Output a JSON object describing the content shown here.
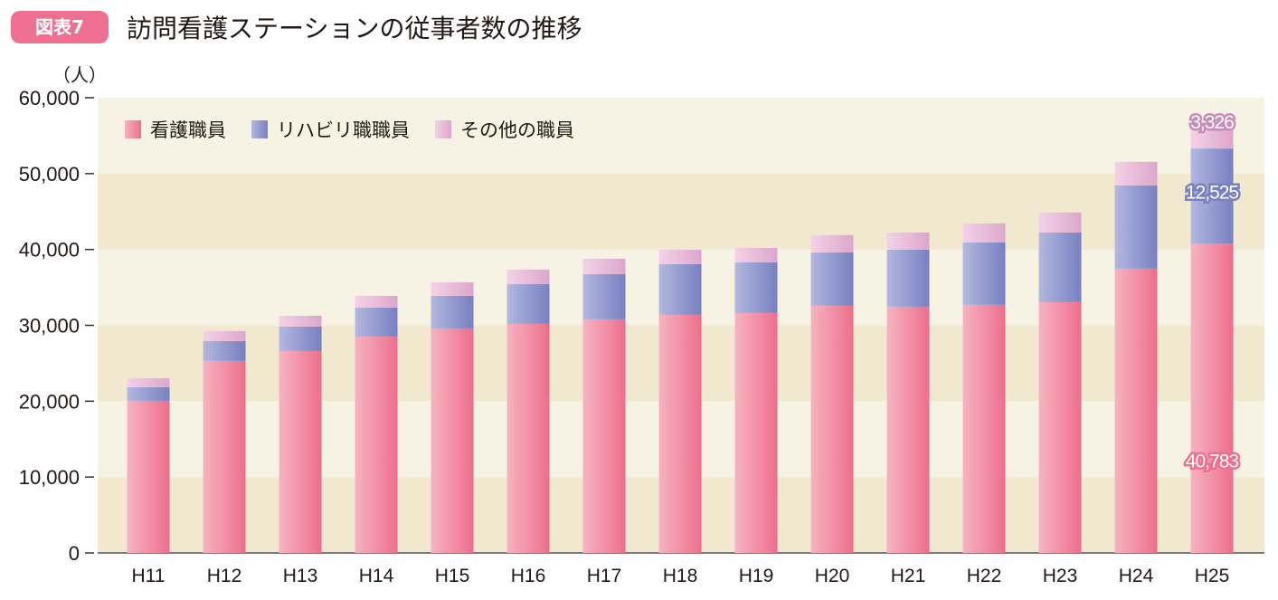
{
  "badge": "図表7",
  "title": "訪問看護ステーションの従事者数の推移",
  "chart_data": {
    "type": "bar",
    "stacked": true,
    "title": "訪問看護ステーションの従事者数の推移",
    "ylabel": "（人）",
    "xlabel": "",
    "ylim": [
      0,
      60000
    ],
    "yticks": [
      0,
      10000,
      20000,
      30000,
      40000,
      50000,
      60000
    ],
    "ytick_labels": [
      "0",
      "10,000",
      "20,000",
      "30,000",
      "40,000",
      "50,000",
      "60,000"
    ],
    "legend_position": "top-left",
    "categories": [
      "H11",
      "H12",
      "H13",
      "H14",
      "H15",
      "H16",
      "H17",
      "H18",
      "H19",
      "H20",
      "H21",
      "H22",
      "H23",
      "H24",
      "H25"
    ],
    "series": [
      {
        "name": "看護職員",
        "color": "#ee7a95",
        "values": [
          20050,
          25300,
          26610,
          28520,
          29590,
          30190,
          30790,
          31380,
          31620,
          32580,
          32460,
          32700,
          33050,
          37470,
          40783
        ]
      },
      {
        "name": "リハビリ職職員",
        "color": "#8c93cb",
        "values": [
          1790,
          2620,
          3220,
          3820,
          4300,
          5250,
          5960,
          6690,
          6690,
          7040,
          7520,
          8230,
          9190,
          10980,
          12525
        ]
      },
      {
        "name": "その他の職員",
        "color": "#e6b7d6",
        "values": [
          1190,
          1320,
          1430,
          1550,
          1790,
          1910,
          2030,
          1910,
          1900,
          2270,
          2260,
          2510,
          2630,
          3100,
          3326
        ]
      }
    ],
    "annotations": [
      {
        "category": "H25",
        "series": "看護職員",
        "text": "40,783"
      },
      {
        "category": "H25",
        "series": "リハビリ職職員",
        "text": "12,525"
      },
      {
        "category": "H25",
        "series": "その他の職員",
        "text": "3,326"
      }
    ]
  }
}
